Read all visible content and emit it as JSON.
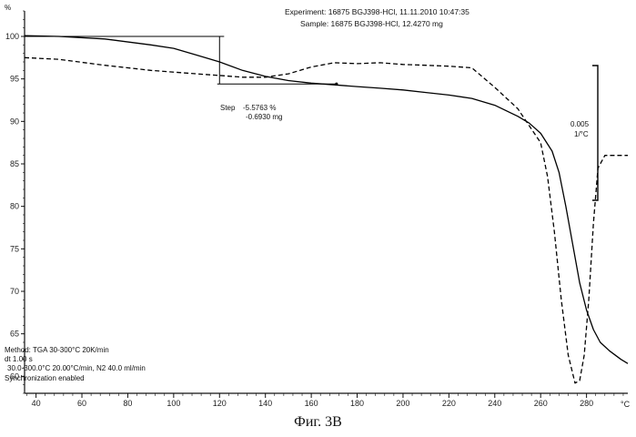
{
  "header": {
    "experiment_line": "Experiment: 16875 BGJ398-HCl, 11.11.2010 10:47:35",
    "sample_line": "Sample: 16875 BGJ398-HCl, 12.4270 mg"
  },
  "step_annotation": {
    "label": "Step",
    "percent": "-5.5763 %",
    "mass": "-0.6930 mg",
    "x_start": 0,
    "x_end": 171,
    "y_start": 100,
    "y_end": 94.4
  },
  "scale_bar": {
    "value": "0.005",
    "unit": "1/°C"
  },
  "method": {
    "lines": [
      "Method: TGA 30-300°C 20K/min",
      "dt 1.00 s",
      "30.0-300.0°C 20.00°C/min, N2 40.0 ml/min",
      "Synchronization enabled"
    ]
  },
  "axis_unit_x": "°C",
  "figure_caption": "Фиг. 3В",
  "chart_data": {
    "type": "line",
    "xlim": [
      35,
      298
    ],
    "ylim": [
      58,
      103
    ],
    "x_ticks": [
      40,
      60,
      80,
      100,
      120,
      140,
      160,
      180,
      200,
      220,
      240,
      260,
      280
    ],
    "y_ticks": [
      60,
      65,
      70,
      75,
      80,
      85,
      90,
      95,
      100
    ],
    "y_top_label": "%",
    "series": [
      {
        "style": "solid",
        "x": [
          35,
          50,
          70,
          90,
          100,
          110,
          120,
          130,
          140,
          150,
          160,
          170,
          180,
          190,
          200,
          210,
          220,
          230,
          240,
          250,
          255,
          260,
          265,
          268,
          271,
          274,
          277,
          280,
          283,
          286,
          290,
          295,
          298
        ],
        "y": [
          100.1,
          100.0,
          99.7,
          99.0,
          98.6,
          97.8,
          97.0,
          96.0,
          95.3,
          94.8,
          94.5,
          94.3,
          94.1,
          93.9,
          93.7,
          93.4,
          93.1,
          92.7,
          91.9,
          90.6,
          89.8,
          88.6,
          86.5,
          84.0,
          80.0,
          75.5,
          71.0,
          67.8,
          65.5,
          64.0,
          63.0,
          62.0,
          61.5
        ]
      },
      {
        "style": "dashed",
        "x": [
          35,
          50,
          70,
          90,
          110,
          120,
          130,
          140,
          150,
          160,
          170,
          180,
          190,
          200,
          210,
          220,
          230,
          240,
          250,
          255,
          260,
          263,
          266,
          269,
          272,
          275,
          277,
          279,
          281,
          283,
          285,
          288,
          292,
          298
        ],
        "y": [
          97.5,
          97.3,
          96.6,
          96.0,
          95.6,
          95.4,
          95.2,
          95.2,
          95.6,
          96.4,
          96.9,
          96.8,
          96.9,
          96.7,
          96.6,
          96.5,
          96.3,
          94.0,
          91.5,
          89.5,
          87.5,
          83.5,
          77.0,
          69.0,
          62.5,
          59.2,
          59.5,
          62.5,
          69.0,
          78.0,
          84.5,
          86.0,
          86.0,
          86.0
        ]
      }
    ]
  }
}
